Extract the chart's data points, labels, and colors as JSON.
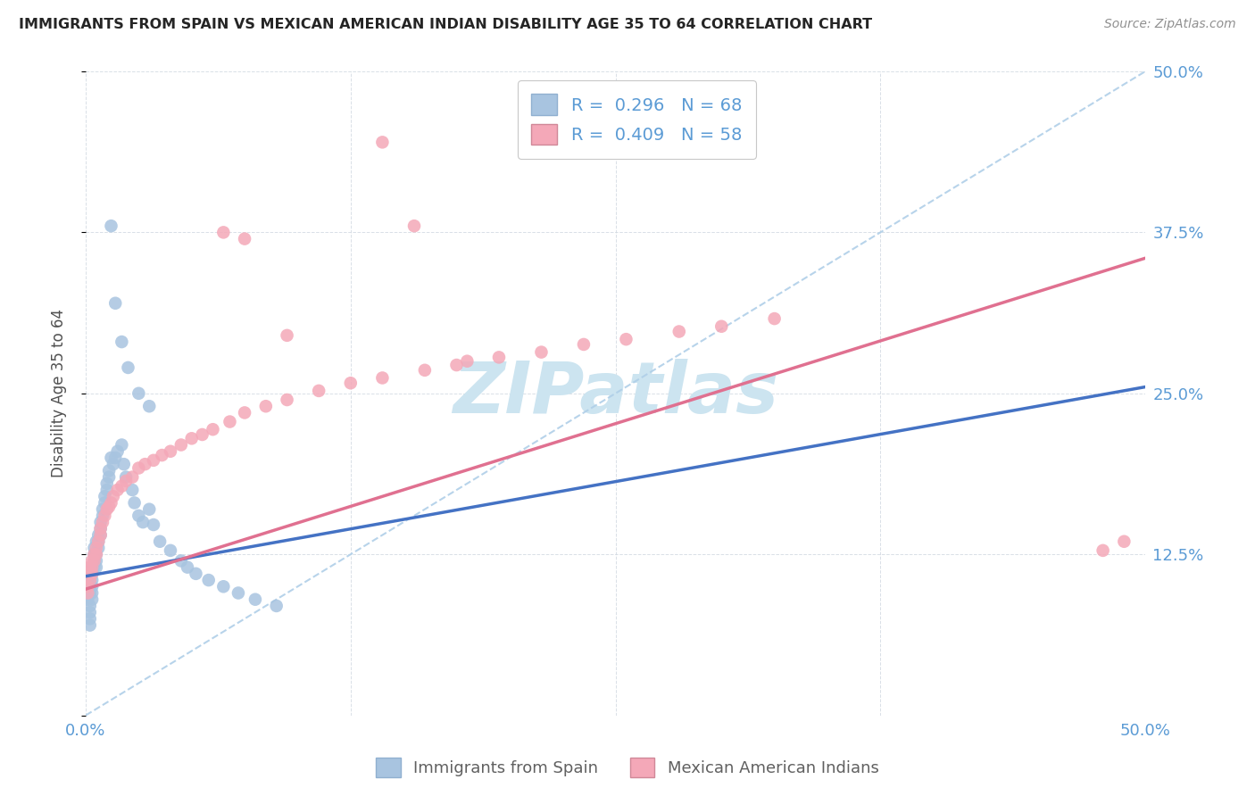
{
  "title": "IMMIGRANTS FROM SPAIN VS MEXICAN AMERICAN INDIAN DISABILITY AGE 35 TO 64 CORRELATION CHART",
  "source": "Source: ZipAtlas.com",
  "ylabel": "Disability Age 35 to 64",
  "xlim": [
    0.0,
    0.5
  ],
  "ylim": [
    0.0,
    0.5
  ],
  "xtick_pos": [
    0.0,
    0.125,
    0.25,
    0.375,
    0.5
  ],
  "ytick_pos": [
    0.0,
    0.125,
    0.25,
    0.375,
    0.5
  ],
  "xtick_labels": [
    "0.0%",
    "",
    "",
    "",
    "50.0%"
  ],
  "ytick_labels_right": [
    "",
    "12.5%",
    "25.0%",
    "37.5%",
    "50.0%"
  ],
  "blue_R": 0.296,
  "blue_N": 68,
  "pink_R": 0.409,
  "pink_N": 58,
  "blue_scatter_color": "#a8c4e0",
  "pink_scatter_color": "#f4a8b8",
  "blue_line_color": "#4472c4",
  "pink_line_color": "#e07090",
  "dash_line_color": "#b0cfe8",
  "watermark_color": "#cce4f0",
  "tick_label_color": "#5b9bd5",
  "legend_label_blue": "Immigrants from Spain",
  "legend_label_pink": "Mexican American Indians",
  "blue_line_x0": 0.0,
  "blue_line_y0": 0.108,
  "blue_line_x1": 0.5,
  "blue_line_y1": 0.255,
  "pink_line_x0": 0.0,
  "pink_line_y0": 0.098,
  "pink_line_x1": 0.5,
  "pink_line_y1": 0.355,
  "blue_x": [
    0.001,
    0.001,
    0.001,
    0.002,
    0.002,
    0.002,
    0.002,
    0.002,
    0.002,
    0.002,
    0.002,
    0.003,
    0.003,
    0.003,
    0.003,
    0.003,
    0.003,
    0.004,
    0.004,
    0.004,
    0.004,
    0.005,
    0.005,
    0.005,
    0.005,
    0.006,
    0.006,
    0.006,
    0.007,
    0.007,
    0.007,
    0.008,
    0.008,
    0.009,
    0.009,
    0.01,
    0.01,
    0.011,
    0.011,
    0.012,
    0.013,
    0.014,
    0.015,
    0.017,
    0.018,
    0.019,
    0.022,
    0.023,
    0.025,
    0.027,
    0.03,
    0.032,
    0.035,
    0.04,
    0.045,
    0.048,
    0.052,
    0.058,
    0.065,
    0.072,
    0.08,
    0.09,
    0.012,
    0.014,
    0.017,
    0.02,
    0.025,
    0.03
  ],
  "blue_y": [
    0.09,
    0.095,
    0.1,
    0.105,
    0.1,
    0.11,
    0.095,
    0.085,
    0.08,
    0.075,
    0.07,
    0.115,
    0.11,
    0.105,
    0.1,
    0.095,
    0.09,
    0.12,
    0.125,
    0.115,
    0.13,
    0.135,
    0.125,
    0.12,
    0.115,
    0.14,
    0.135,
    0.13,
    0.15,
    0.145,
    0.14,
    0.16,
    0.155,
    0.17,
    0.165,
    0.175,
    0.18,
    0.185,
    0.19,
    0.2,
    0.195,
    0.2,
    0.205,
    0.21,
    0.195,
    0.185,
    0.175,
    0.165,
    0.155,
    0.15,
    0.16,
    0.148,
    0.135,
    0.128,
    0.12,
    0.115,
    0.11,
    0.105,
    0.1,
    0.095,
    0.09,
    0.085,
    0.38,
    0.32,
    0.29,
    0.27,
    0.25,
    0.24
  ],
  "pink_x": [
    0.001,
    0.001,
    0.002,
    0.002,
    0.002,
    0.003,
    0.003,
    0.003,
    0.004,
    0.004,
    0.005,
    0.005,
    0.006,
    0.007,
    0.007,
    0.008,
    0.009,
    0.01,
    0.011,
    0.012,
    0.013,
    0.015,
    0.017,
    0.019,
    0.022,
    0.025,
    0.028,
    0.032,
    0.036,
    0.04,
    0.045,
    0.05,
    0.055,
    0.06,
    0.068,
    0.075,
    0.085,
    0.095,
    0.11,
    0.125,
    0.14,
    0.16,
    0.175,
    0.195,
    0.215,
    0.235,
    0.255,
    0.28,
    0.3,
    0.325,
    0.065,
    0.075,
    0.095,
    0.14,
    0.155,
    0.18,
    0.48,
    0.49
  ],
  "pink_y": [
    0.1,
    0.095,
    0.11,
    0.105,
    0.115,
    0.12,
    0.115,
    0.11,
    0.125,
    0.12,
    0.13,
    0.125,
    0.135,
    0.14,
    0.145,
    0.15,
    0.155,
    0.16,
    0.162,
    0.165,
    0.17,
    0.175,
    0.178,
    0.182,
    0.185,
    0.192,
    0.195,
    0.198,
    0.202,
    0.205,
    0.21,
    0.215,
    0.218,
    0.222,
    0.228,
    0.235,
    0.24,
    0.245,
    0.252,
    0.258,
    0.262,
    0.268,
    0.272,
    0.278,
    0.282,
    0.288,
    0.292,
    0.298,
    0.302,
    0.308,
    0.375,
    0.37,
    0.295,
    0.445,
    0.38,
    0.275,
    0.128,
    0.135
  ]
}
